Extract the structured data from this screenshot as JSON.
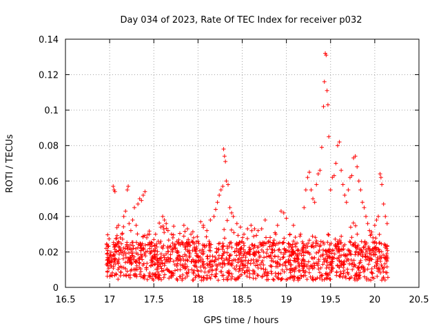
{
  "chart_data": {
    "type": "scatter",
    "title": "Day 034 of 2023, Rate Of TEC Index for receiver p032",
    "xlabel": "GPS time / hours",
    "ylabel": "ROTI / TECUs",
    "xlim": [
      16.5,
      20.5
    ],
    "ylim": [
      0,
      0.14
    ],
    "xticks": [
      "16.5",
      "17",
      "17.5",
      "18",
      "18.5",
      "19",
      "19.5",
      "20",
      "20.5"
    ],
    "yticks": [
      "0",
      "0.02",
      "0.04",
      "0.06",
      "0.08",
      "0.1",
      "0.12",
      "0.14"
    ],
    "grid": true,
    "marker": "+",
    "series": [
      {
        "name": "ROTI",
        "color": "#ff0000",
        "points": [
          [
            16.96,
            0.022
          ],
          [
            16.97,
            0.024
          ],
          [
            16.98,
            0.023
          ],
          [
            17.0,
            0.015
          ],
          [
            17.02,
            0.012
          ],
          [
            17.04,
            0.057
          ],
          [
            17.05,
            0.055
          ],
          [
            17.06,
            0.054
          ],
          [
            17.08,
            0.02
          ],
          [
            17.1,
            0.035
          ],
          [
            17.12,
            0.028
          ],
          [
            17.14,
            0.03
          ],
          [
            17.16,
            0.04
          ],
          [
            17.18,
            0.043
          ],
          [
            17.2,
            0.055
          ],
          [
            17.21,
            0.057
          ],
          [
            17.22,
            0.036
          ],
          [
            17.24,
            0.032
          ],
          [
            17.26,
            0.038
          ],
          [
            17.28,
            0.045
          ],
          [
            17.3,
            0.035
          ],
          [
            17.32,
            0.047
          ],
          [
            17.34,
            0.05
          ],
          [
            17.36,
            0.049
          ],
          [
            17.38,
            0.052
          ],
          [
            17.4,
            0.054
          ],
          [
            17.42,
            0.028
          ],
          [
            17.45,
            0.03
          ],
          [
            17.48,
            0.025
          ],
          [
            17.5,
            0.027
          ],
          [
            17.52,
            0.03
          ],
          [
            17.55,
            0.026
          ],
          [
            17.58,
            0.034
          ],
          [
            17.6,
            0.04
          ],
          [
            17.62,
            0.038
          ],
          [
            17.64,
            0.036
          ],
          [
            17.66,
            0.032
          ],
          [
            17.7,
            0.03
          ],
          [
            17.74,
            0.022
          ],
          [
            17.76,
            0.02
          ],
          [
            17.78,
            0.018
          ],
          [
            17.8,
            0.024
          ],
          [
            17.84,
            0.035
          ],
          [
            17.88,
            0.033
          ],
          [
            17.92,
            0.03
          ],
          [
            17.95,
            0.028
          ],
          [
            18.0,
            0.026
          ],
          [
            18.03,
            0.037
          ],
          [
            18.06,
            0.035
          ],
          [
            18.1,
            0.032
          ],
          [
            18.14,
            0.038
          ],
          [
            18.18,
            0.04
          ],
          [
            18.2,
            0.044
          ],
          [
            18.22,
            0.048
          ],
          [
            18.24,
            0.052
          ],
          [
            18.26,
            0.055
          ],
          [
            18.28,
            0.057
          ],
          [
            18.29,
            0.078
          ],
          [
            18.3,
            0.074
          ],
          [
            18.31,
            0.071
          ],
          [
            18.32,
            0.06
          ],
          [
            18.34,
            0.058
          ],
          [
            18.36,
            0.045
          ],
          [
            18.38,
            0.042
          ],
          [
            18.4,
            0.04
          ],
          [
            18.44,
            0.036
          ],
          [
            18.48,
            0.034
          ],
          [
            18.52,
            0.03
          ],
          [
            18.56,
            0.033
          ],
          [
            18.6,
            0.035
          ],
          [
            18.64,
            0.033
          ],
          [
            18.68,
            0.032
          ],
          [
            18.72,
            0.033
          ],
          [
            18.76,
            0.038
          ],
          [
            18.8,
            0.026
          ],
          [
            18.84,
            0.024
          ],
          [
            18.88,
            0.03
          ],
          [
            18.9,
            0.035
          ],
          [
            18.94,
            0.043
          ],
          [
            18.97,
            0.042
          ],
          [
            19.0,
            0.039
          ],
          [
            19.04,
            0.03
          ],
          [
            19.08,
            0.035
          ],
          [
            19.12,
            0.025
          ],
          [
            19.16,
            0.03
          ],
          [
            19.2,
            0.045
          ],
          [
            19.22,
            0.055
          ],
          [
            19.24,
            0.062
          ],
          [
            19.26,
            0.065
          ],
          [
            19.28,
            0.055
          ],
          [
            19.3,
            0.05
          ],
          [
            19.32,
            0.048
          ],
          [
            19.34,
            0.058
          ],
          [
            19.36,
            0.064
          ],
          [
            19.38,
            0.066
          ],
          [
            19.4,
            0.079
          ],
          [
            19.42,
            0.102
          ],
          [
            19.43,
            0.116
          ],
          [
            19.44,
            0.132
          ],
          [
            19.45,
            0.131
          ],
          [
            19.46,
            0.111
          ],
          [
            19.47,
            0.103
          ],
          [
            19.48,
            0.085
          ],
          [
            19.5,
            0.055
          ],
          [
            19.52,
            0.062
          ],
          [
            19.54,
            0.063
          ],
          [
            19.56,
            0.07
          ],
          [
            19.58,
            0.08
          ],
          [
            19.6,
            0.082
          ],
          [
            19.62,
            0.066
          ],
          [
            19.64,
            0.058
          ],
          [
            19.66,
            0.052
          ],
          [
            19.68,
            0.048
          ],
          [
            19.7,
            0.055
          ],
          [
            19.72,
            0.062
          ],
          [
            19.74,
            0.063
          ],
          [
            19.76,
            0.073
          ],
          [
            19.78,
            0.074
          ],
          [
            19.8,
            0.068
          ],
          [
            19.82,
            0.06
          ],
          [
            19.84,
            0.055
          ],
          [
            19.86,
            0.048
          ],
          [
            19.88,
            0.045
          ],
          [
            19.9,
            0.04
          ],
          [
            19.92,
            0.036
          ],
          [
            19.94,
            0.032
          ],
          [
            19.96,
            0.03
          ],
          [
            19.98,
            0.028
          ],
          [
            20.0,
            0.035
          ],
          [
            20.02,
            0.038
          ],
          [
            20.04,
            0.04
          ],
          [
            20.06,
            0.064
          ],
          [
            20.07,
            0.062
          ],
          [
            20.08,
            0.058
          ],
          [
            20.1,
            0.047
          ],
          [
            20.12,
            0.04
          ],
          [
            20.14,
            0.036
          ]
        ]
      }
    ]
  }
}
